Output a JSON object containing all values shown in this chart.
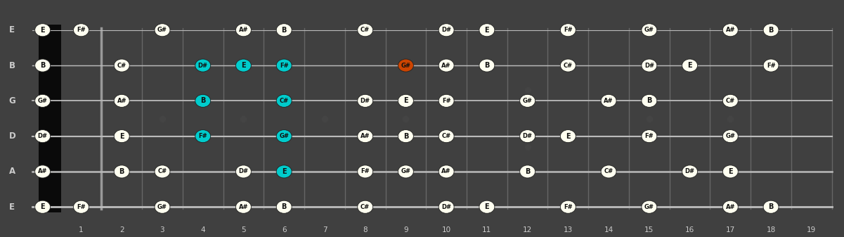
{
  "bg_color": "#404040",
  "fretboard_color": "#1c1c1c",
  "note_color_normal": "#fffff0",
  "note_color_cyan": "#00cccc",
  "note_color_orange": "#cc4400",
  "note_text_dark": "#111111",
  "string_labels": [
    "E",
    "B",
    "G",
    "D",
    "A",
    "E"
  ],
  "num_frets": 19,
  "fret_dots": [
    3,
    5,
    7,
    9,
    12,
    15,
    17
  ],
  "double_dots": [
    12
  ],
  "fret_numbers": [
    1,
    2,
    3,
    4,
    5,
    6,
    7,
    8,
    9,
    10,
    11,
    12,
    13,
    14,
    15,
    16,
    17,
    18,
    19
  ],
  "notes": {
    "E_high": {
      "open": "E",
      "1": "F#",
      "3": "G#",
      "5": "A#",
      "6": "B",
      "8": "C#",
      "10": "D#",
      "11": "E",
      "13": "F#",
      "15": "G#",
      "17": "A#",
      "18": "B"
    },
    "B": {
      "open": "B",
      "2": "C#",
      "4": "D#",
      "5": "E",
      "6": "F#",
      "9": "G#",
      "10": "A#",
      "11": "B",
      "13": "C#",
      "15": "D#",
      "16": "E",
      "18": "F#"
    },
    "G": {
      "open": "G#",
      "2": "A#",
      "4": "B",
      "6": "C#",
      "8": "D#",
      "9": "E",
      "10": "F#",
      "12": "G#",
      "14": "A#",
      "15": "B",
      "17": "C#"
    },
    "D": {
      "open": "D#",
      "2": "E",
      "4": "F#",
      "6": "G#",
      "8": "A#",
      "9": "B",
      "10": "C#",
      "12": "D#",
      "13": "E",
      "15": "F#",
      "17": "G#"
    },
    "A": {
      "open": "A#",
      "2": "B",
      "3": "C#",
      "5": "D#",
      "6": "E",
      "8": "F#",
      "9": "G#",
      "10": "A#",
      "12": "B",
      "14": "C#",
      "16": "D#",
      "17": "E"
    },
    "E_low": {
      "open": "E",
      "1": "F#",
      "3": "G#",
      "5": "A#",
      "6": "B",
      "8": "C#",
      "10": "D#",
      "11": "E",
      "13": "F#",
      "15": "G#",
      "17": "A#",
      "18": "B"
    }
  },
  "cyan_notes": [
    [
      "B",
      4
    ],
    [
      "B",
      5
    ],
    [
      "B",
      6
    ],
    [
      "G",
      4
    ],
    [
      "G",
      6
    ],
    [
      "D",
      4
    ],
    [
      "D",
      6
    ],
    [
      "A",
      6
    ]
  ],
  "orange_notes": [
    [
      "B",
      9
    ]
  ],
  "nut_block_color": "#111111",
  "fret_line_color": "#666666",
  "string_line_color": "#bbbbbb",
  "label_color": "#cccccc",
  "dot_color": "#444444"
}
